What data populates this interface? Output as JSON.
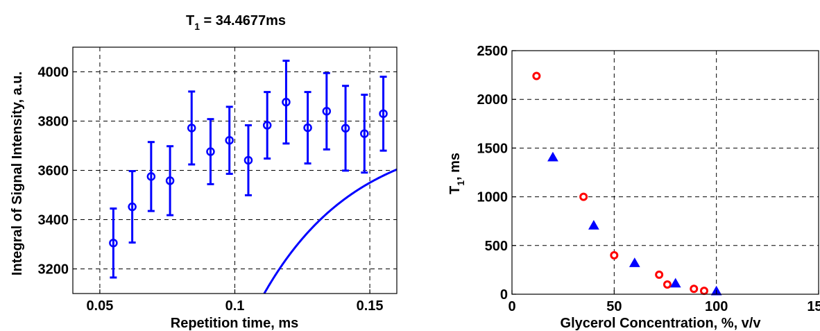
{
  "chart_data": [
    {
      "type": "scatter",
      "title_main": "T",
      "title_sub": "1",
      "title_rest": " = 34.4677ms",
      "xlabel": "Repetition time, ms",
      "ylabel": "Integral of Signal Intensity, a.u.",
      "xlim": [
        0.04,
        0.16
      ],
      "ylim": [
        3100,
        4100
      ],
      "xticks": [
        0.05,
        0.1,
        0.15
      ],
      "xtick_labels": [
        "0.05",
        "0.1",
        "0.15"
      ],
      "yticks": [
        3200,
        3400,
        3600,
        3800,
        4000
      ],
      "ytick_labels": [
        "3200",
        "3400",
        "3600",
        "3800",
        "4000"
      ],
      "grid": true,
      "series_color": "#0000ff",
      "points": [
        {
          "x": 0.055,
          "y": 3305,
          "err": 140
        },
        {
          "x": 0.062,
          "y": 3452,
          "err": 145
        },
        {
          "x": 0.069,
          "y": 3575,
          "err": 140
        },
        {
          "x": 0.076,
          "y": 3558,
          "err": 140
        },
        {
          "x": 0.084,
          "y": 3772,
          "err": 148
        },
        {
          "x": 0.091,
          "y": 3676,
          "err": 132
        },
        {
          "x": 0.098,
          "y": 3722,
          "err": 136
        },
        {
          "x": 0.105,
          "y": 3641,
          "err": 142
        },
        {
          "x": 0.112,
          "y": 3783,
          "err": 135
        },
        {
          "x": 0.119,
          "y": 3877,
          "err": 168
        },
        {
          "x": 0.127,
          "y": 3773,
          "err": 145
        },
        {
          "x": 0.134,
          "y": 3840,
          "err": 155
        },
        {
          "x": 0.141,
          "y": 3771,
          "err": 172
        },
        {
          "x": 0.148,
          "y": 3749,
          "err": 158
        },
        {
          "x": 0.155,
          "y": 3830,
          "err": 150
        }
      ],
      "fit": {
        "A": 3763,
        "B": 16550,
        "T1": 0.0344677
      }
    },
    {
      "type": "scatter",
      "xlabel": "Glycerol Concentration, %, v/v",
      "ylabel_main": "T",
      "ylabel_sub": "1",
      "ylabel_rest": ", ms",
      "xlim": [
        0,
        150
      ],
      "ylim": [
        0,
        2500
      ],
      "xticks": [
        0,
        50,
        100,
        150
      ],
      "xtick_labels": [
        "0",
        "50",
        "100",
        "150"
      ],
      "yticks": [
        0,
        500,
        1000,
        1500,
        2000,
        2500
      ],
      "ytick_labels": [
        "0",
        "500",
        "1000",
        "1500",
        "2000",
        "2500"
      ],
      "grid": true,
      "series": [
        {
          "marker": "circle",
          "color": "#ff0000",
          "points": [
            [
              12,
              2240
            ],
            [
              35,
              1000
            ],
            [
              50,
              400
            ],
            [
              72,
              200
            ],
            [
              76,
              100
            ],
            [
              89,
              55
            ],
            [
              94,
              35
            ]
          ]
        },
        {
          "marker": "triangle",
          "color": "#0000ff",
          "points": [
            [
              20,
              1405
            ],
            [
              40,
              705
            ],
            [
              60,
              320
            ],
            [
              80,
              110
            ],
            [
              100,
              30
            ]
          ]
        }
      ]
    }
  ]
}
